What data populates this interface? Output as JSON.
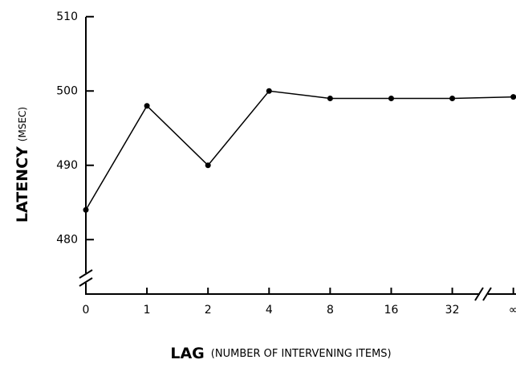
{
  "chart_data": {
    "type": "line",
    "x_label": "LAG",
    "x_label_note": "(NUMBER OF INTERVENING ITEMS)",
    "y_label": "LATENCY",
    "y_label_unit": "(MSEC)",
    "categories": [
      "0",
      "1",
      "2",
      "4",
      "8",
      "16",
      "32",
      "∞"
    ],
    "series": [
      {
        "color": "#000000",
        "values": [
          484,
          498,
          490,
          500,
          499,
          499,
          499,
          499.2
        ]
      }
    ],
    "ylim": [
      473,
      510
    ],
    "yticks": [
      480,
      490,
      500,
      510
    ]
  }
}
